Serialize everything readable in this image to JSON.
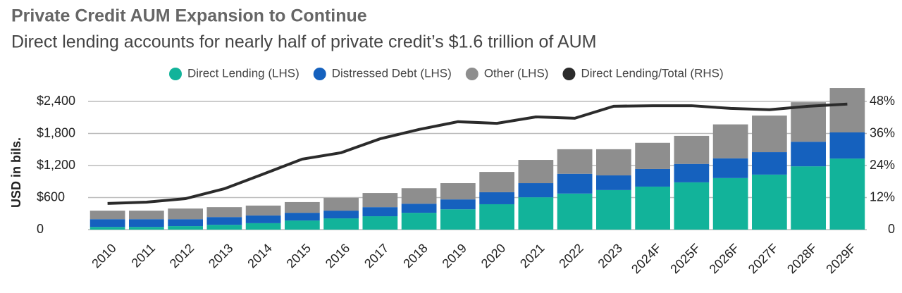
{
  "chart_data": {
    "type": "bar",
    "stacked": true,
    "title": "Private Credit AUM Expansion to Continue",
    "subtitle": "Direct lending accounts for nearly half of private credit’s $1.6 trillion of AUM",
    "y_label": "USD in bils.",
    "categories": [
      "2010",
      "2011",
      "2012",
      "2013",
      "2014",
      "2015",
      "2016",
      "2017",
      "2018",
      "2019",
      "2020",
      "2021",
      "2022",
      "2023",
      "2024F",
      "2025F",
      "2026F",
      "2027F",
      "2028F",
      "2029F"
    ],
    "series": [
      {
        "name": "Direct Lending (LHS)",
        "color": "#12b39a",
        "values": [
          50,
          50,
          65,
          90,
          120,
          170,
          210,
          250,
          315,
          380,
          475,
          605,
          675,
          740,
          805,
          885,
          965,
          1030,
          1185,
          1330
        ]
      },
      {
        "name": "Distressed Debt (LHS)",
        "color": "#1561be",
        "values": [
          145,
          145,
          130,
          145,
          145,
          145,
          145,
          170,
          170,
          185,
          225,
          265,
          370,
          275,
          330,
          345,
          370,
          420,
          460,
          490
        ]
      },
      {
        "name": "Other (LHS)",
        "color": "#8e8e8e",
        "values": [
          160,
          160,
          200,
          185,
          185,
          200,
          240,
          265,
          290,
          305,
          380,
          435,
          460,
          490,
          490,
          525,
          635,
          685,
          740,
          830
        ]
      },
      {
        "name": "Direct Lending/Total (RHS)",
        "color": "#2b2b2b",
        "type": "line",
        "axis": "y2",
        "values": [
          9.8,
          10.3,
          11.6,
          15.3,
          20.8,
          26.4,
          28.8,
          34,
          37.5,
          40.4,
          39.8,
          42.2,
          41.7,
          46.2,
          46.4,
          46.4,
          45.4,
          44.9,
          46.2,
          47
        ]
      }
    ],
    "ylim": [
      0,
      2400
    ],
    "yticks": [
      0,
      {
        "value": 600,
        "label": "$600"
      },
      {
        "value": 1200,
        "label": "$1,200"
      },
      {
        "value": 1800,
        "label": "$1,800"
      },
      {
        "value": 2400,
        "label": "$2,400"
      }
    ],
    "y2lim": [
      0,
      48
    ],
    "y2ticks": [
      0,
      {
        "value": 12,
        "label": "12%"
      },
      {
        "value": 24,
        "label": "24%"
      },
      {
        "value": 36,
        "label": "36%"
      },
      {
        "value": 48,
        "label": "48%"
      }
    ],
    "grid": true
  }
}
